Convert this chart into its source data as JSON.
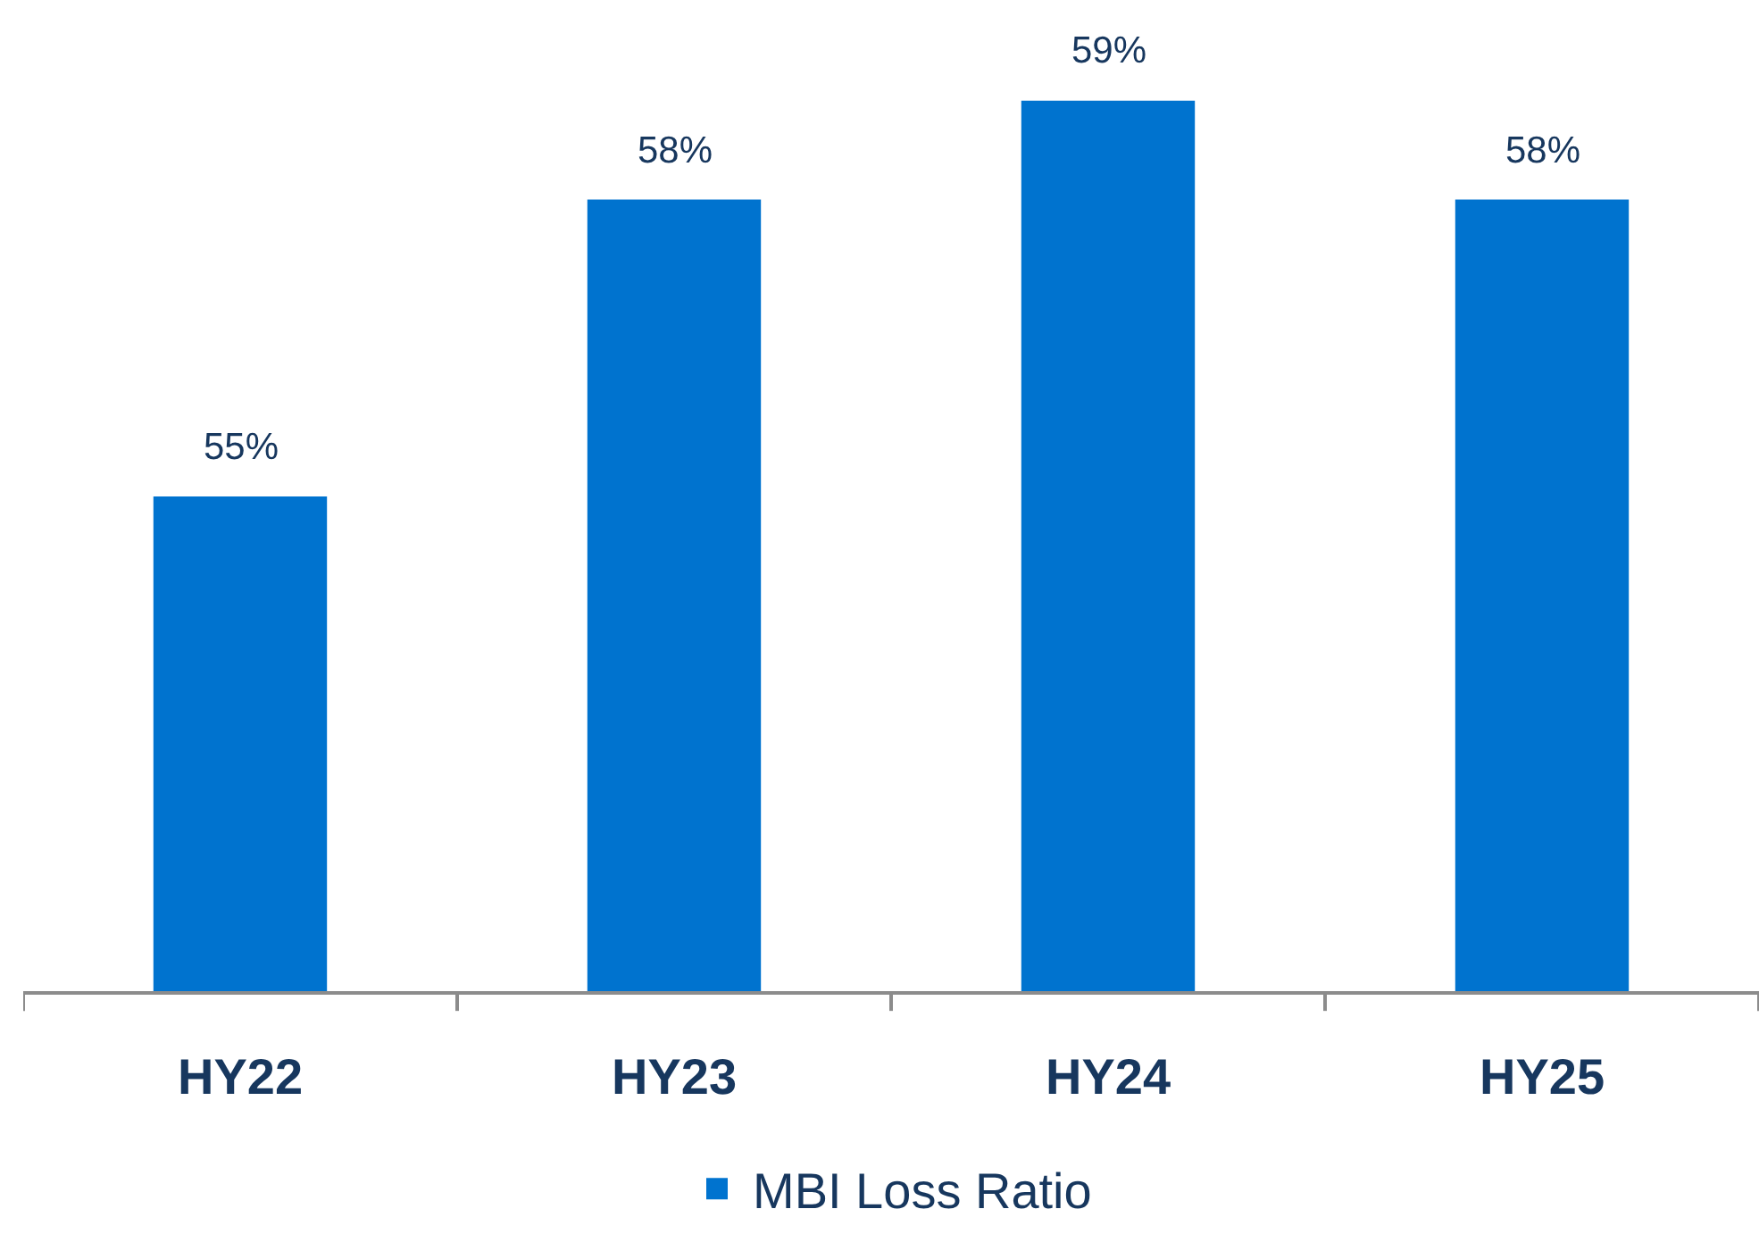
{
  "chart_data": {
    "type": "bar",
    "categories": [
      "HY22",
      "HY23",
      "HY24",
      "HY25"
    ],
    "series": [
      {
        "name": "MBI Loss Ratio",
        "color": "#0073cf",
        "values": [
          55,
          58,
          59,
          58
        ],
        "value_labels": [
          "55%",
          "58%",
          "59%",
          "58%"
        ]
      }
    ],
    "ylim": [
      50,
      60
    ],
    "tick_labels": "x",
    "legend": "bottom"
  }
}
